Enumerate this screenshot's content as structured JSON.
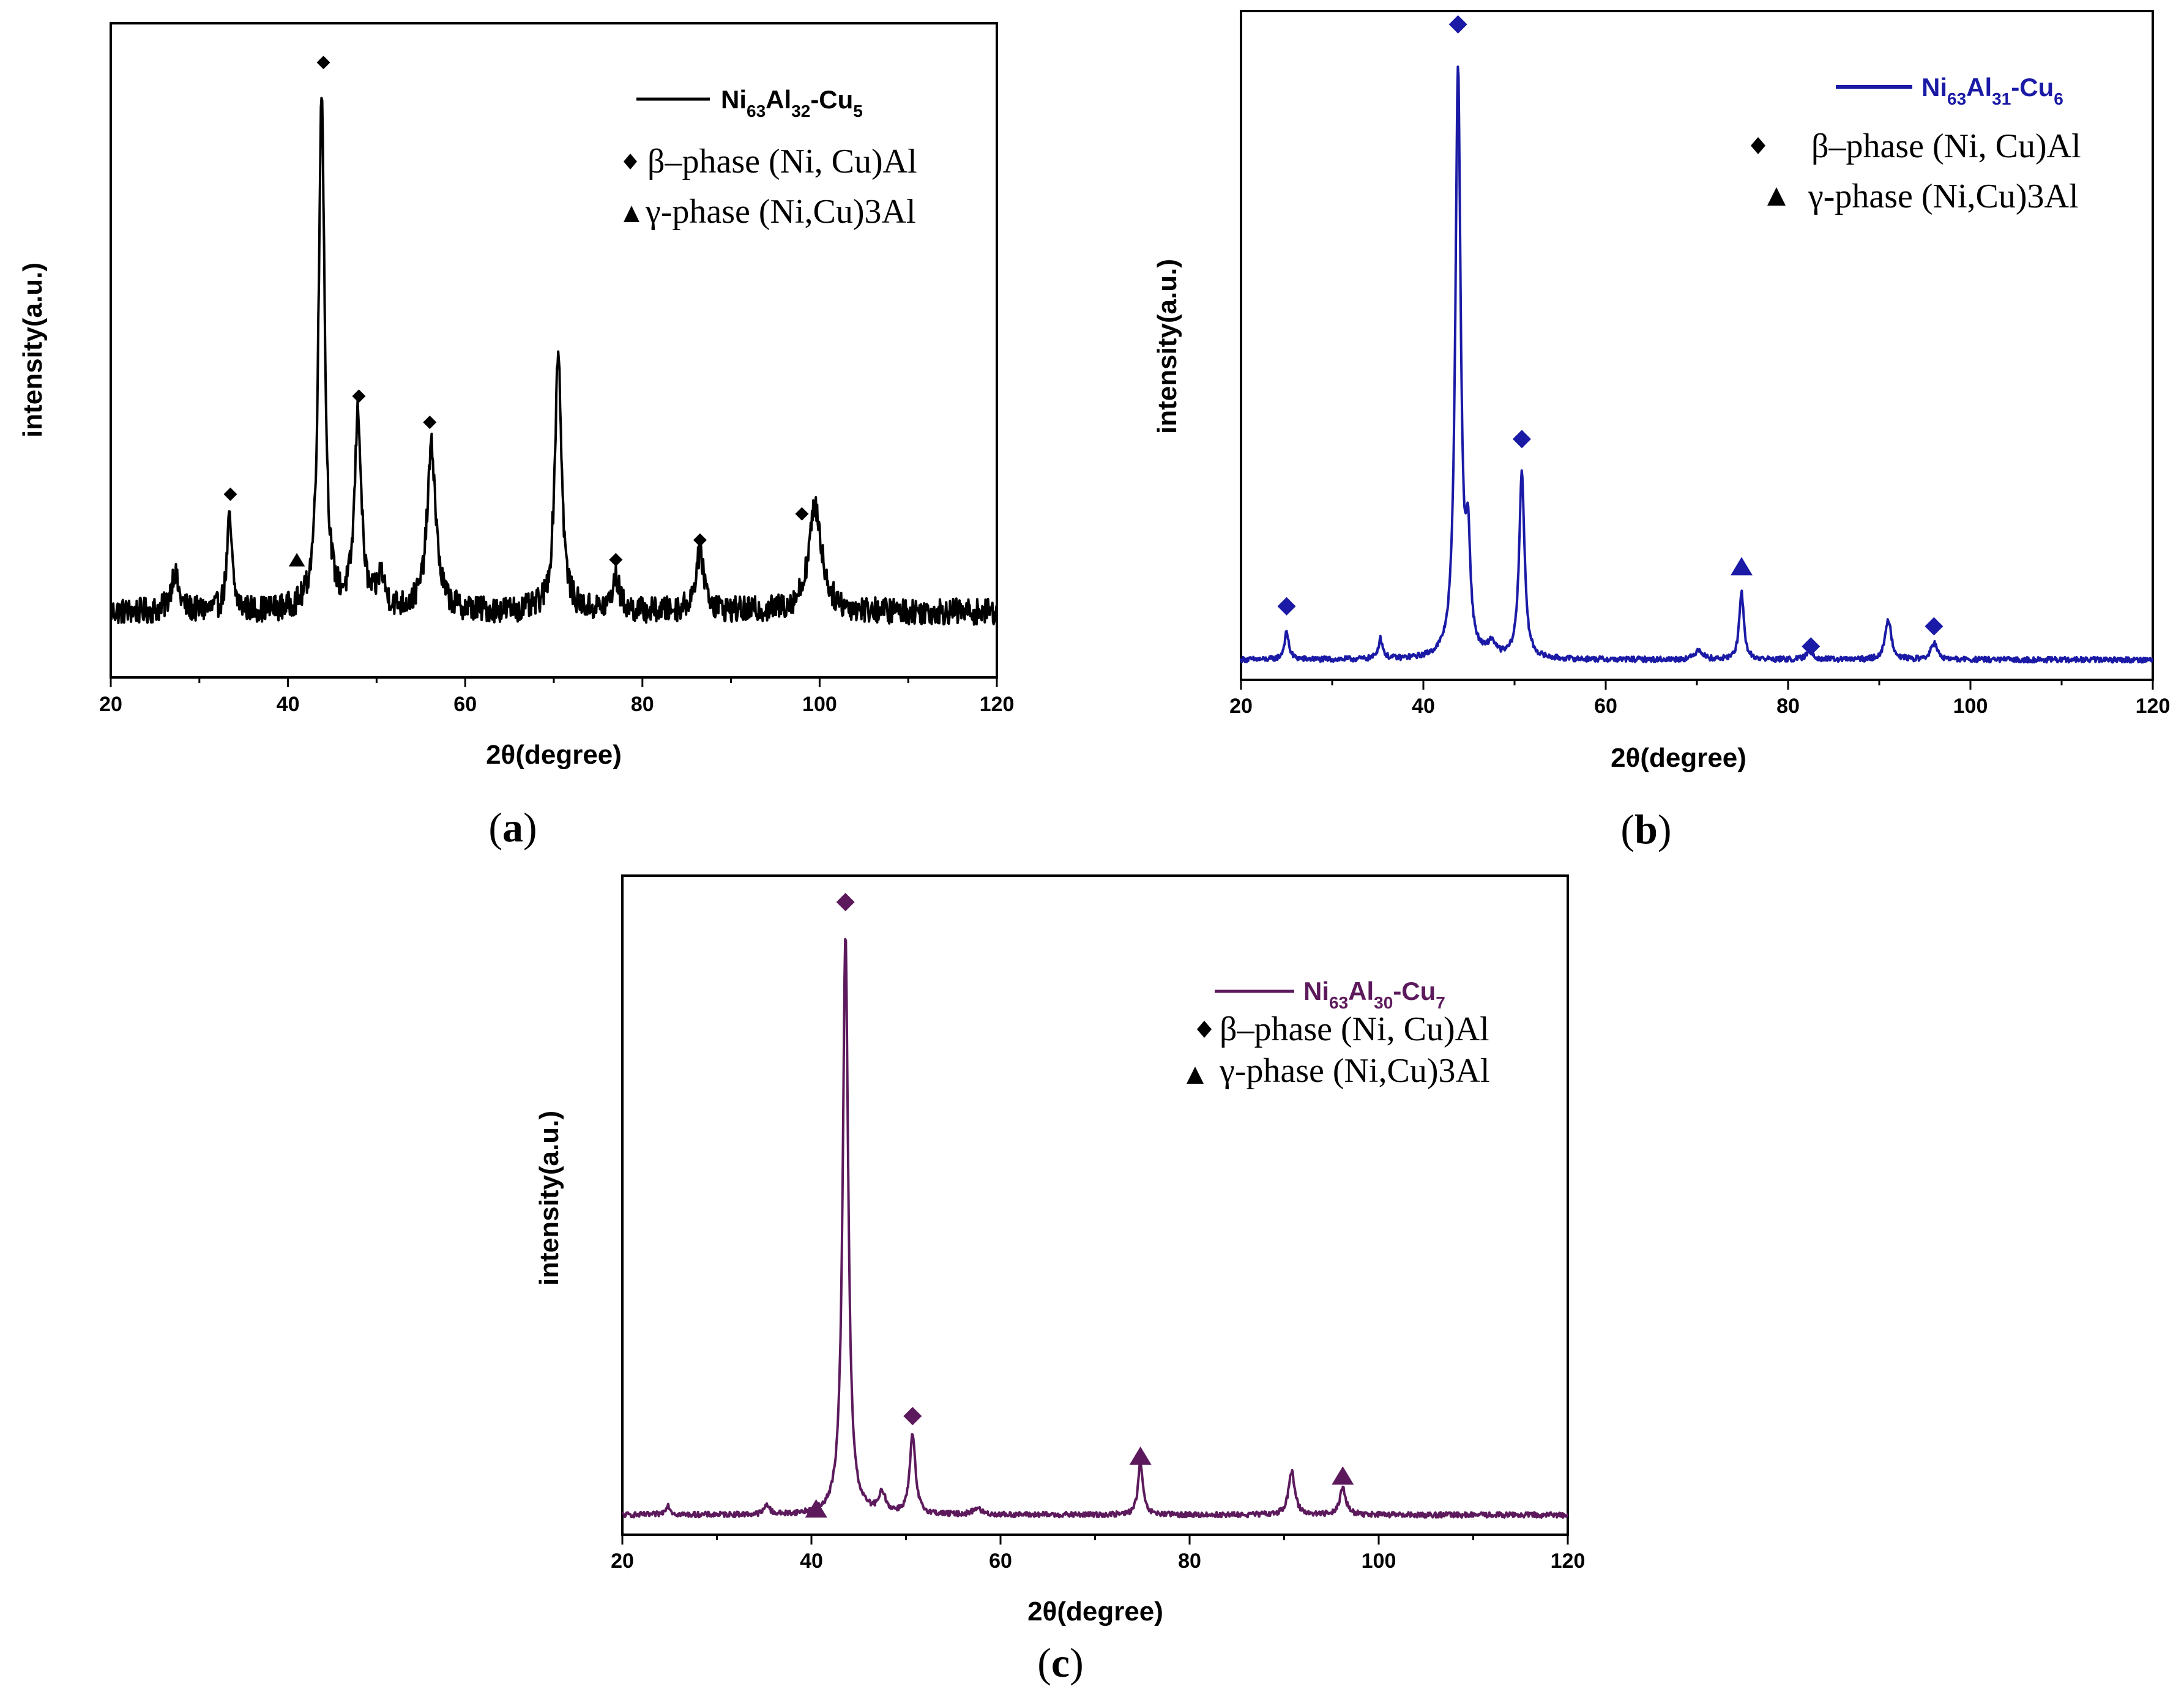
{
  "chart_data": [
    {
      "type": "line",
      "panel_label": "a",
      "xlabel": "2θ(degree)",
      "ylabel": "intensity(a.u.)",
      "xlim": [
        20,
        120
      ],
      "ylim": [
        0,
        100
      ],
      "x_ticks": [
        "20",
        "40",
        "60",
        "80",
        "100",
        "120"
      ],
      "series": [
        {
          "name": "Ni63Al32-Cu5",
          "color": "#000000",
          "noise": 2.0,
          "baseline": 10,
          "peaks": [
            {
              "x": 27.2,
              "height": 6,
              "width": 0.5
            },
            {
              "x": 33.4,
              "height": 14,
              "width": 0.35
            },
            {
              "x": 43.8,
              "height": 80,
              "width": 0.4
            },
            {
              "x": 47.9,
              "height": 30,
              "width": 0.45
            },
            {
              "x": 50.5,
              "height": 5,
              "width": 0.5
            },
            {
              "x": 56.2,
              "height": 25,
              "width": 0.6
            },
            {
              "x": 70.5,
              "height": 40,
              "width": 0.45
            },
            {
              "x": 77.0,
              "height": 5,
              "width": 0.5
            },
            {
              "x": 86.5,
              "height": 9,
              "width": 0.6
            },
            {
              "x": 99.5,
              "height": 16,
              "width": 0.9
            }
          ]
        }
      ],
      "legend": {
        "series_label": {
          "main1": "Ni",
          "sub1": "63",
          "main2": "Al",
          "sub2": "32",
          "main3": "-Cu",
          "sub3": "5"
        },
        "beta_label": "β–phase (Ni, Cu)Al",
        "gamma_label": "γ-phase (Ni,Cu)3Al"
      },
      "markers": [
        {
          "type": "diamond",
          "x": 33.5,
          "y": 28
        },
        {
          "type": "diamond",
          "x": 44.0,
          "y": 94
        },
        {
          "type": "diamond",
          "x": 48.0,
          "y": 43
        },
        {
          "type": "diamond",
          "x": 56.0,
          "y": 39
        },
        {
          "type": "diamond",
          "x": 77.0,
          "y": 18
        },
        {
          "type": "diamond",
          "x": 86.5,
          "y": 21
        },
        {
          "type": "diamond",
          "x": 98.0,
          "y": 25
        },
        {
          "type": "triangle",
          "x": 41.0,
          "y": 18
        }
      ]
    },
    {
      "type": "line",
      "panel_label": "b",
      "xlabel": "2θ(degree)",
      "ylabel": "intensity(a.u.)",
      "xlim": [
        20,
        120
      ],
      "ylim": [
        0,
        100
      ],
      "x_ticks": [
        "20",
        "40",
        "60",
        "80",
        "100",
        "120"
      ],
      "series": [
        {
          "name": "Ni63Al31-Cu6",
          "color": "#1a1aa6",
          "noise": 0.4,
          "baseline": 3,
          "peaks": [
            {
              "x": 25.0,
              "height": 4,
              "width": 0.3
            },
            {
              "x": 35.3,
              "height": 3,
              "width": 0.3
            },
            {
              "x": 43.8,
              "height": 88,
              "width": 0.35
            },
            {
              "x": 44.9,
              "height": 15,
              "width": 0.3
            },
            {
              "x": 47.5,
              "height": 2,
              "width": 0.5
            },
            {
              "x": 50.8,
              "height": 28,
              "width": 0.35
            },
            {
              "x": 70.2,
              "height": 1.5,
              "width": 0.5
            },
            {
              "x": 74.9,
              "height": 10,
              "width": 0.3
            },
            {
              "x": 82.4,
              "height": 1.5,
              "width": 0.4
            },
            {
              "x": 91.0,
              "height": 6,
              "width": 0.4
            },
            {
              "x": 96.0,
              "height": 2.5,
              "width": 0.4
            }
          ]
        }
      ],
      "legend": {
        "series_label": {
          "main1": "Ni",
          "sub1": "63",
          "main2": "Al",
          "sub2": "31",
          "main3": "-Cu",
          "sub3": "6"
        },
        "beta_label": "β–phase (Ni, Cu)Al",
        "gamma_label": "γ-phase (Ni,Cu)3Al"
      },
      "markers": [
        {
          "type": "diamond",
          "x": 25.0,
          "y": 11
        },
        {
          "type": "diamond",
          "x": 43.8,
          "y": 98
        },
        {
          "type": "diamond",
          "x": 50.8,
          "y": 36
        },
        {
          "type": "diamond",
          "x": 82.5,
          "y": 5
        },
        {
          "type": "diamond",
          "x": 96.0,
          "y": 8
        },
        {
          "type": "triangle",
          "x": 74.9,
          "y": 17
        }
      ]
    },
    {
      "type": "line",
      "panel_label": "c",
      "xlabel": "2θ(degree)",
      "ylabel": "intensity(a.u.)",
      "xlim": [
        20,
        120
      ],
      "ylim": [
        0,
        100
      ],
      "x_ticks": [
        "20",
        "40",
        "60",
        "80",
        "100",
        "120"
      ],
      "series": [
        {
          "name": "Ni63Al30-Cu7",
          "color": "#5c1a5c",
          "noise": 0.4,
          "baseline": 3,
          "peaks": [
            {
              "x": 24.8,
              "height": 1.5,
              "width": 0.3
            },
            {
              "x": 35.3,
              "height": 1.5,
              "width": 0.3
            },
            {
              "x": 43.6,
              "height": 88,
              "width": 0.35
            },
            {
              "x": 47.5,
              "height": 3,
              "width": 0.4
            },
            {
              "x": 50.7,
              "height": 12,
              "width": 0.35
            },
            {
              "x": 57.5,
              "height": 1,
              "width": 0.5
            },
            {
              "x": 74.8,
              "height": 8,
              "width": 0.3
            },
            {
              "x": 90.8,
              "height": 6.5,
              "width": 0.4
            },
            {
              "x": 96.2,
              "height": 4,
              "width": 0.4
            }
          ]
        }
      ],
      "legend": {
        "series_label": {
          "main1": "Ni",
          "sub1": "63",
          "main2": "Al",
          "sub2": "30",
          "main3": "-Cu",
          "sub3": "7"
        },
        "beta_label": "β–phase (Ni, Cu)Al",
        "gamma_label": "γ-phase (Ni,Cu)3Al"
      },
      "markers": [
        {
          "type": "diamond",
          "x": 43.6,
          "y": 96
        },
        {
          "type": "diamond",
          "x": 50.7,
          "y": 18
        },
        {
          "type": "triangle",
          "x": 40.5,
          "y": 4
        },
        {
          "type": "triangle",
          "x": 74.8,
          "y": 12
        },
        {
          "type": "triangle",
          "x": 96.2,
          "y": 9
        }
      ]
    }
  ]
}
